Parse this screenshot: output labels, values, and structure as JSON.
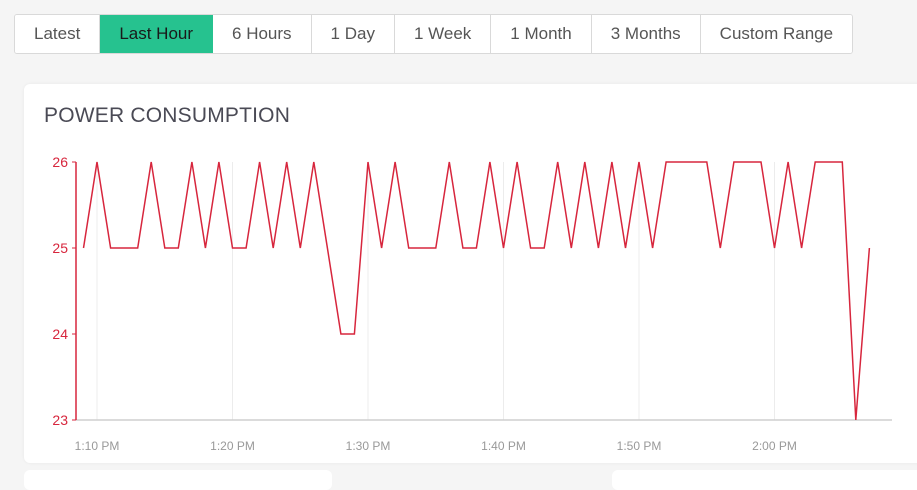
{
  "range_selector": {
    "buttons": [
      {
        "label": "Latest",
        "active": false
      },
      {
        "label": "Last Hour",
        "active": true
      },
      {
        "label": "6 Hours",
        "active": false
      },
      {
        "label": "1 Day",
        "active": false
      },
      {
        "label": "1 Week",
        "active": false
      },
      {
        "label": "1 Month",
        "active": false
      },
      {
        "label": "3 Months",
        "active": false
      },
      {
        "label": "Custom Range",
        "active": false
      }
    ],
    "active_color": "#26c28f"
  },
  "card": {
    "title": "POWER CONSUMPTION"
  },
  "chart_data": {
    "type": "line",
    "title": "POWER CONSUMPTION",
    "xlabel": "",
    "ylabel": "",
    "ylim": [
      23,
      26
    ],
    "yticks": [
      23,
      24,
      25,
      26
    ],
    "xticks": [
      "1:10 PM",
      "1:20 PM",
      "1:30 PM",
      "1:40 PM",
      "1:50 PM",
      "2:00 PM"
    ],
    "grid": {
      "x": true,
      "y": false
    },
    "legend": null,
    "line_color": "#d7263d",
    "axis_color": "#d7263d",
    "x": [
      "1:09 PM",
      "1:10 PM",
      "1:11 PM",
      "1:12 PM",
      "1:13 PM",
      "1:14 PM",
      "1:15 PM",
      "1:16 PM",
      "1:17 PM",
      "1:18 PM",
      "1:19 PM",
      "1:20 PM",
      "1:21 PM",
      "1:22 PM",
      "1:23 PM",
      "1:24 PM",
      "1:25 PM",
      "1:26 PM",
      "1:27 PM",
      "1:28 PM",
      "1:29 PM",
      "1:30 PM",
      "1:31 PM",
      "1:32 PM",
      "1:33 PM",
      "1:34 PM",
      "1:35 PM",
      "1:36 PM",
      "1:37 PM",
      "1:38 PM",
      "1:39 PM",
      "1:40 PM",
      "1:41 PM",
      "1:42 PM",
      "1:43 PM",
      "1:44 PM",
      "1:45 PM",
      "1:46 PM",
      "1:47 PM",
      "1:48 PM",
      "1:49 PM",
      "1:50 PM",
      "1:51 PM",
      "1:52 PM",
      "1:53 PM",
      "1:54 PM",
      "1:55 PM",
      "1:56 PM",
      "1:57 PM",
      "1:58 PM",
      "1:59 PM",
      "2:00 PM",
      "2:01 PM",
      "2:02 PM",
      "2:03 PM",
      "2:04 PM",
      "2:05 PM",
      "2:06 PM",
      "2:07 PM"
    ],
    "series": [
      {
        "name": "Power Consumption",
        "values": [
          25,
          26,
          25,
          25,
          25,
          26,
          25,
          25,
          26,
          25,
          26,
          25,
          25,
          26,
          25,
          26,
          25,
          26,
          25,
          24,
          24,
          26,
          25,
          26,
          25,
          25,
          25,
          26,
          25,
          25,
          26,
          25,
          26,
          25,
          25,
          26,
          25,
          26,
          25,
          26,
          25,
          26,
          25,
          26,
          26,
          26,
          26,
          25,
          26,
          26,
          26,
          25,
          26,
          25,
          26,
          26,
          26,
          23,
          25
        ]
      }
    ]
  }
}
